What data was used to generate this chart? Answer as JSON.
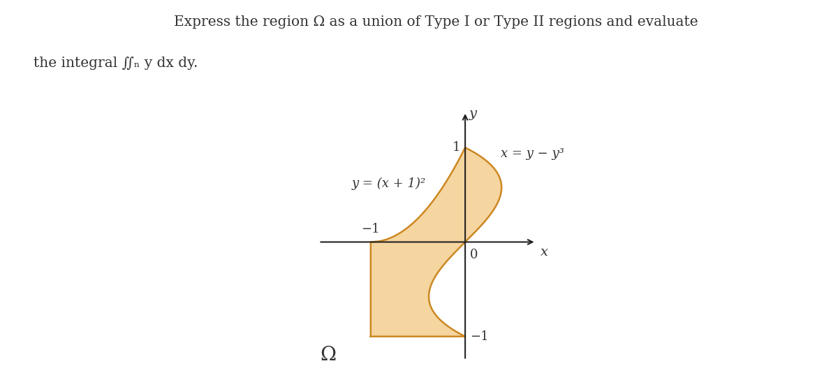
{
  "title_line1": "Express the region $\\Omega$ as a union of Type I or Type II regions and evaluate",
  "title_line2": "the integral $\\iint_{\\Omega} y\\, dx\\, dy$.",
  "fill_color": "#F5D5A0",
  "edge_color": "#CC8822",
  "axis_color": "#222222",
  "text_color": "#333333",
  "label_x_eq": "x = y − y³",
  "label_y_eq": "y = (x + 1)²",
  "omega_label": "Ω",
  "figsize": [
    12.0,
    5.57
  ],
  "dpi": 100,
  "background_color": "#ffffff"
}
